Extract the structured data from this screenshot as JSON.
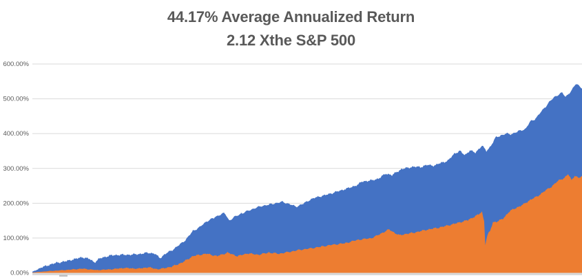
{
  "title": {
    "line1": "44.17% Average Annualized Return",
    "line2": "2.12 Xthe S&P 500"
  },
  "chart_data": {
    "type": "area",
    "title": "44.17% Average Annualized Return 2.12 Xthe S&P 500",
    "xlabel": "",
    "ylabel": "",
    "ylim": [
      0,
      600
    ],
    "grid": true,
    "legend_position": "none",
    "x_axis_tick_labels": "none",
    "yticks": [
      {
        "value": 0,
        "label": "0.00%"
      },
      {
        "value": 100,
        "label": "100.00%"
      },
      {
        "value": 200,
        "label": "200.00%"
      },
      {
        "value": 300,
        "label": "300.00%"
      },
      {
        "value": 400,
        "label": "400.00%"
      },
      {
        "value": 500,
        "label": "500.00%"
      },
      {
        "value": 600,
        "label": "600.00%"
      }
    ],
    "colors": {
      "series_blue": "#4472C4",
      "series_orange": "#ED7D31",
      "gridline": "#D9D9D9",
      "axis_band": "#D9D9D9",
      "axis_tick": "#C0C0C0",
      "tick_text": "#595959",
      "title_text": "#595959"
    },
    "series": [
      {
        "name": "blue-series-cumulative-return",
        "color": "#4472C4",
        "unit": "percent",
        "noise_amp_pct": 3.4,
        "points": [
          [
            0,
            3
          ],
          [
            0.016,
            15
          ],
          [
            0.029,
            22
          ],
          [
            0.041,
            28
          ],
          [
            0.06,
            33
          ],
          [
            0.073,
            38
          ],
          [
            0.091,
            45
          ],
          [
            0.104,
            40
          ],
          [
            0.113,
            30
          ],
          [
            0.123,
            42
          ],
          [
            0.142,
            50
          ],
          [
            0.16,
            52
          ],
          [
            0.179,
            52
          ],
          [
            0.198,
            55
          ],
          [
            0.211,
            58
          ],
          [
            0.223,
            55
          ],
          [
            0.232,
            42
          ],
          [
            0.242,
            55
          ],
          [
            0.254,
            65
          ],
          [
            0.267,
            80
          ],
          [
            0.279,
            95
          ],
          [
            0.292,
            120
          ],
          [
            0.305,
            132
          ],
          [
            0.317,
            148
          ],
          [
            0.33,
            158
          ],
          [
            0.342,
            168
          ],
          [
            0.35,
            172
          ],
          [
            0.358,
            150
          ],
          [
            0.367,
            160
          ],
          [
            0.38,
            170
          ],
          [
            0.392,
            178
          ],
          [
            0.405,
            186
          ],
          [
            0.417,
            192
          ],
          [
            0.43,
            196
          ],
          [
            0.442,
            200
          ],
          [
            0.455,
            204
          ],
          [
            0.467,
            198
          ],
          [
            0.48,
            190
          ],
          [
            0.492,
            198
          ],
          [
            0.505,
            210
          ],
          [
            0.518,
            218
          ],
          [
            0.53,
            222
          ],
          [
            0.543,
            228
          ],
          [
            0.555,
            234
          ],
          [
            0.568,
            240
          ],
          [
            0.58,
            246
          ],
          [
            0.593,
            254
          ],
          [
            0.599,
            262
          ],
          [
            0.618,
            266
          ],
          [
            0.63,
            271
          ],
          [
            0.643,
            285
          ],
          [
            0.655,
            281
          ],
          [
            0.663,
            290
          ],
          [
            0.672,
            298
          ],
          [
            0.68,
            301
          ],
          [
            0.693,
            305
          ],
          [
            0.706,
            304
          ],
          [
            0.718,
            310
          ],
          [
            0.731,
            308
          ],
          [
            0.743,
            316
          ],
          [
            0.756,
            322
          ],
          [
            0.768,
            343
          ],
          [
            0.778,
            350
          ],
          [
            0.787,
            338
          ],
          [
            0.796,
            352
          ],
          [
            0.806,
            345
          ],
          [
            0.818,
            366
          ],
          [
            0.826,
            350
          ],
          [
            0.833,
            362
          ],
          [
            0.843,
            389
          ],
          [
            0.853,
            395
          ],
          [
            0.862,
            400
          ],
          [
            0.871,
            398
          ],
          [
            0.881,
            405
          ],
          [
            0.89,
            410
          ],
          [
            0.897,
            413
          ],
          [
            0.906,
            435
          ],
          [
            0.915,
            442
          ],
          [
            0.923,
            458
          ],
          [
            0.932,
            474
          ],
          [
            0.941,
            492
          ],
          [
            0.95,
            505
          ],
          [
            0.957,
            512
          ],
          [
            0.964,
            518
          ],
          [
            0.97,
            505
          ],
          [
            0.976,
            515
          ],
          [
            0.983,
            528
          ],
          [
            0.989,
            544
          ],
          [
            0.994,
            538
          ],
          [
            1,
            531
          ]
        ]
      },
      {
        "name": "orange-series-sp500-cumulative-return",
        "color": "#ED7D31",
        "unit": "percent",
        "noise_amp_pct": 2.8,
        "points": [
          [
            0,
            1
          ],
          [
            0.029,
            5
          ],
          [
            0.06,
            8
          ],
          [
            0.091,
            12
          ],
          [
            0.117,
            8
          ],
          [
            0.142,
            10
          ],
          [
            0.167,
            14
          ],
          [
            0.192,
            12
          ],
          [
            0.211,
            16
          ],
          [
            0.229,
            10
          ],
          [
            0.254,
            18
          ],
          [
            0.273,
            30
          ],
          [
            0.292,
            48
          ],
          [
            0.305,
            52
          ],
          [
            0.317,
            55
          ],
          [
            0.336,
            48
          ],
          [
            0.355,
            58
          ],
          [
            0.373,
            48
          ],
          [
            0.392,
            56
          ],
          [
            0.411,
            52
          ],
          [
            0.43,
            58
          ],
          [
            0.449,
            55
          ],
          [
            0.467,
            60
          ],
          [
            0.486,
            66
          ],
          [
            0.505,
            70
          ],
          [
            0.524,
            75
          ],
          [
            0.543,
            80
          ],
          [
            0.568,
            85
          ],
          [
            0.593,
            95
          ],
          [
            0.618,
            100
          ],
          [
            0.637,
            115
          ],
          [
            0.649,
            125
          ],
          [
            0.662,
            112
          ],
          [
            0.668,
            108
          ],
          [
            0.68,
            112
          ],
          [
            0.693,
            115
          ],
          [
            0.718,
            124
          ],
          [
            0.743,
            131
          ],
          [
            0.768,
            141
          ],
          [
            0.793,
            152
          ],
          [
            0.812,
            168
          ],
          [
            0.818,
            175
          ],
          [
            0.822,
            148
          ],
          [
            0.824,
            82
          ],
          [
            0.828,
            108
          ],
          [
            0.833,
            122
          ],
          [
            0.838,
            145
          ],
          [
            0.846,
            148
          ],
          [
            0.856,
            155
          ],
          [
            0.868,
            177
          ],
          [
            0.881,
            187
          ],
          [
            0.894,
            197
          ],
          [
            0.906,
            210
          ],
          [
            0.919,
            220
          ],
          [
            0.931,
            234
          ],
          [
            0.944,
            247
          ],
          [
            0.956,
            264
          ],
          [
            0.969,
            274
          ],
          [
            0.975,
            284
          ],
          [
            0.981,
            266
          ],
          [
            0.987,
            280
          ],
          [
            0.994,
            272
          ],
          [
            1,
            278
          ]
        ]
      }
    ]
  }
}
